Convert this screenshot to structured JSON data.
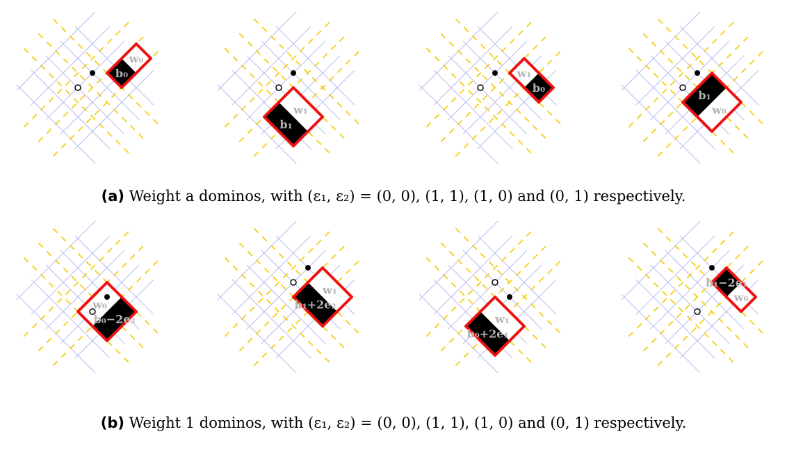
{
  "colors": {
    "grid_line": "#b8b8f0",
    "dashed_line": "#f2cf10",
    "domino_outline": "#ee1111",
    "black_square": "#000000",
    "black_label": "#b4b4b4",
    "white_label": "#b4b4b4",
    "vertex_black": "#000000",
    "vertex_white": "#ffffff"
  },
  "captions": {
    "a": {
      "prefix": "(a)",
      "text": "Weight a dominos, with (ε₁, ε₂) = (0, 0), (1, 1), (1, 0) and (0, 1) respectively."
    },
    "b": {
      "prefix": "(b)",
      "text": "Weight 1 dominos, with (ε₁, ε₂) = (0, 0), (1, 1), (1, 0) and (0, 1) respectively."
    }
  },
  "rows": [
    {
      "name": "weight-a",
      "panels": [
        {
          "eps": "(0, 0)",
          "black_label": "b₀",
          "white_label": "w₀"
        },
        {
          "eps": "(1, 1)",
          "black_label": "b₁",
          "white_label": "w₁"
        },
        {
          "eps": "(1, 0)",
          "black_label": "b₀",
          "white_label": "w₁"
        },
        {
          "eps": "(0, 1)",
          "black_label": "b₁",
          "white_label": "w₀"
        }
      ]
    },
    {
      "name": "weight-1",
      "panels": [
        {
          "eps": "(0, 0)",
          "black_label": "b₀−2e₂",
          "white_label": "w₀"
        },
        {
          "eps": "(1, 1)",
          "black_label": "b₁+2e₂",
          "white_label": "w₁"
        },
        {
          "eps": "(1, 0)",
          "black_label": "b₀+2e₁",
          "white_label": "w₁"
        },
        {
          "eps": "(0, 1)",
          "black_label": "b₁−2e₁",
          "white_label": "w₀"
        }
      ]
    }
  ]
}
